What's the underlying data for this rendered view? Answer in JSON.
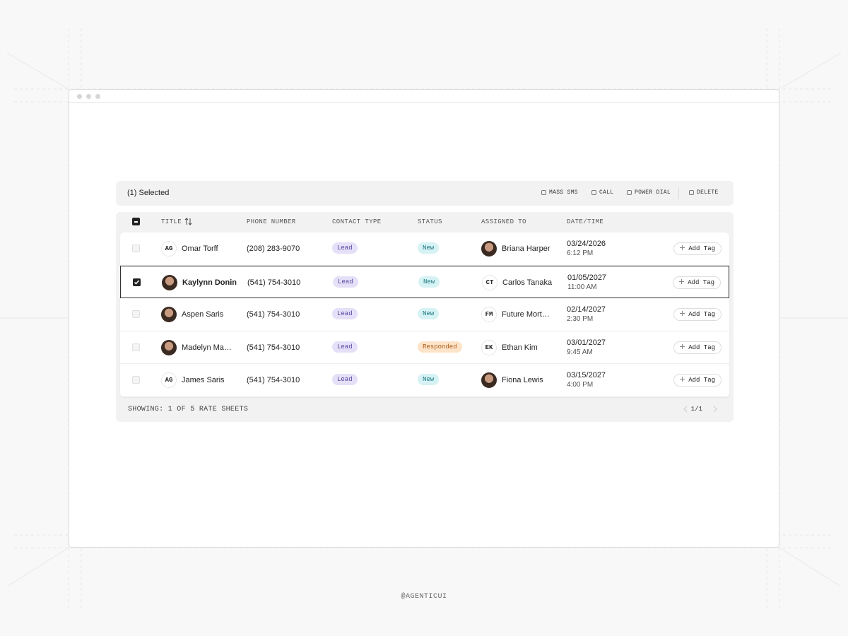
{
  "toolbar": {
    "selected": "(1) Selected",
    "actions": [
      "MASS SMS",
      "CALL",
      "POWER DIAL",
      "DELETE"
    ]
  },
  "table": {
    "headers": [
      "TITLE",
      "PHONE NUMBER",
      "CONTACT TYPE",
      "STATUS",
      "ASSIGNED TO",
      "DATE/TIME"
    ],
    "badge_colors": {
      "Lead": {
        "bg": "#e5e0f8",
        "fg": "#56489f"
      },
      "New": {
        "bg": "#d6f2f4",
        "fg": "#1d7780"
      },
      "Responded": {
        "bg": "#fde3c8",
        "fg": "#a85a17"
      }
    },
    "rows": [
      {
        "selected": false,
        "initials": "AG",
        "name": "Omar Torff",
        "phone": "(208) 283-9070",
        "contact_type": "Lead",
        "status": "New",
        "assignee": "Briana Harper",
        "date": "03/24/2026",
        "time": "6:12 PM",
        "action": "Add Tag"
      },
      {
        "selected": true,
        "name": "Kaylynn Donin",
        "phone": "(541) 754-3010",
        "contact_type": "Lead",
        "status": "New",
        "assignee_initials": "CT",
        "assignee": "Carlos Tanaka",
        "date": "01/05/2027",
        "time": "11:00 AM",
        "action": "Add Tag"
      },
      {
        "selected": false,
        "name": "Aspen Saris",
        "phone": "(541) 754-3010",
        "contact_type": "Lead",
        "status": "New",
        "assignee_initials": "FM",
        "assignee": "Future Mort…",
        "date": "02/14/2027",
        "time": "2:30 PM",
        "action": "Add Tag"
      },
      {
        "selected": false,
        "name": "Madelyn Ma…",
        "phone": "(541) 754-3010",
        "contact_type": "Lead",
        "status": "Responded",
        "assignee_initials": "EK",
        "assignee": "Ethan Kim",
        "date": "03/01/2027",
        "time": "9:45 AM",
        "action": "Add Tag"
      },
      {
        "selected": false,
        "initials": "AG",
        "name": "James Saris",
        "phone": "(541) 754-3010",
        "contact_type": "Lead",
        "status": "New",
        "assignee": "Fiona Lewis",
        "date": "03/15/2027",
        "time": "4:00 PM",
        "action": "Add Tag"
      }
    ]
  },
  "footer": {
    "showing": "SHOWING: 1 OF 5 RATE SHEETS",
    "page": "1/1"
  },
  "watermark": "@AGENTICUI"
}
